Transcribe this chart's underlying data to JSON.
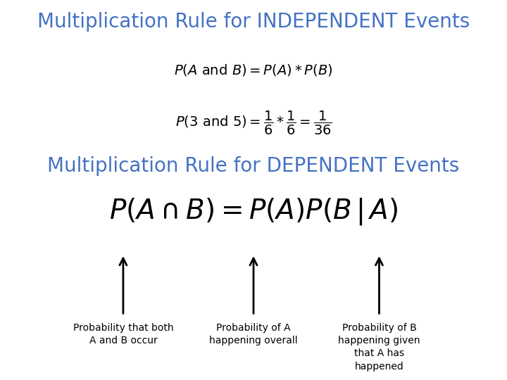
{
  "title1": "Multiplication Rule for INDEPENDENT Events",
  "title2": "Multiplication Rule for DEPENDENT Events",
  "title_color": "#4472C4",
  "title_fontsize": 20,
  "formula1": "$P(A \\mathrm{\\ and\\ } B) = P(A) * P(B)$",
  "formula2": "$P(3 \\mathrm{\\ and\\ } 5) = \\dfrac{1}{6} * \\dfrac{1}{6} = \\dfrac{1}{36}$",
  "formula3": "$P(A \\cap B) = P(A)P(B\\,|\\,A)$",
  "formula_color": "#000000",
  "arrow_color": "#000000",
  "label1": "Probability that both\nA and B occur",
  "label2": "Probability of A\nhappening overall",
  "label3": "Probability of B\nhappening given\nthat A has\nhappened",
  "label_fontsize": 10,
  "bg_color": "#ffffff"
}
